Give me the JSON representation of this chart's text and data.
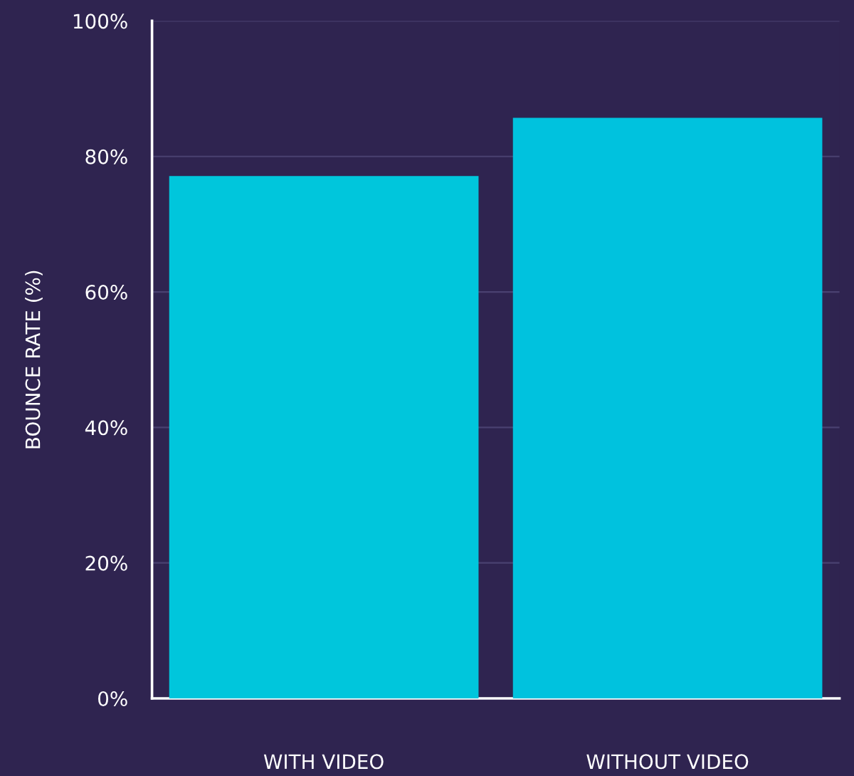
{
  "chart_data": {
    "type": "bar",
    "ylabel": "BOUNCE RATE (%)",
    "categories": [
      "WITH VIDEO",
      "WITHOUT VIDEO"
    ],
    "values": [
      77.1,
      85.7
    ],
    "colors": [
      "#00c6dc",
      "#00c2de"
    ],
    "ylim": [
      0,
      100
    ],
    "yticks": [
      {
        "value": 0,
        "label": "0%"
      },
      {
        "value": 20,
        "label": "20%"
      },
      {
        "value": 40,
        "label": "40%"
      },
      {
        "value": 60,
        "label": "60%"
      },
      {
        "value": 80,
        "label": "80%"
      },
      {
        "value": 100,
        "label": "100%"
      }
    ],
    "grid": "y",
    "legend": false
  }
}
